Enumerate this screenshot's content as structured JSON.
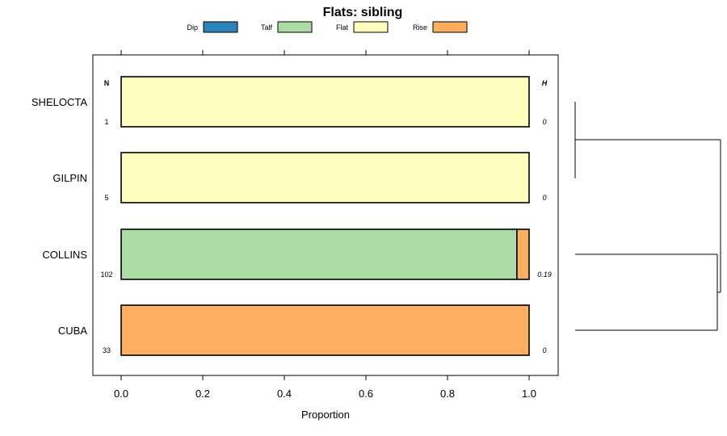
{
  "chart_data": {
    "type": "bar",
    "orientation": "horizontal",
    "stacked": true,
    "title": "Flats: sibling",
    "xlabel": "Proportion",
    "ylabel": "",
    "xlim": [
      -0.07,
      1.07
    ],
    "xticks": [
      0.0,
      0.2,
      0.4,
      0.6,
      0.8,
      1.0
    ],
    "xtick_labels": [
      "0.0",
      "0.2",
      "0.4",
      "0.6",
      "0.8",
      "1.0"
    ],
    "legend_position": "top",
    "series": [
      {
        "name": "Dip",
        "color": "#2b83ba"
      },
      {
        "name": "Talf",
        "color": "#abdda4"
      },
      {
        "name": "Flat",
        "color": "#ffffbf"
      },
      {
        "name": "Rise",
        "color": "#fdae61"
      }
    ],
    "categories": [
      "SHELOCTA",
      "GILPIN",
      "COLLINS",
      "CUBA"
    ],
    "values": {
      "Dip": [
        0,
        0,
        0,
        0
      ],
      "Talf": [
        0,
        0,
        0.97,
        0
      ],
      "Flat": [
        1,
        1,
        0,
        0
      ],
      "Rise": [
        0,
        0,
        0.03,
        1
      ]
    },
    "n_header": "N",
    "n_values": [
      "1",
      "5",
      "102",
      "33"
    ],
    "h_header": "H",
    "h_values": [
      "0",
      "0",
      "0.19",
      "0"
    ],
    "dendrogram": "right side, clustering SHELOCTA+GILPIN and COLLINS+CUBA"
  }
}
